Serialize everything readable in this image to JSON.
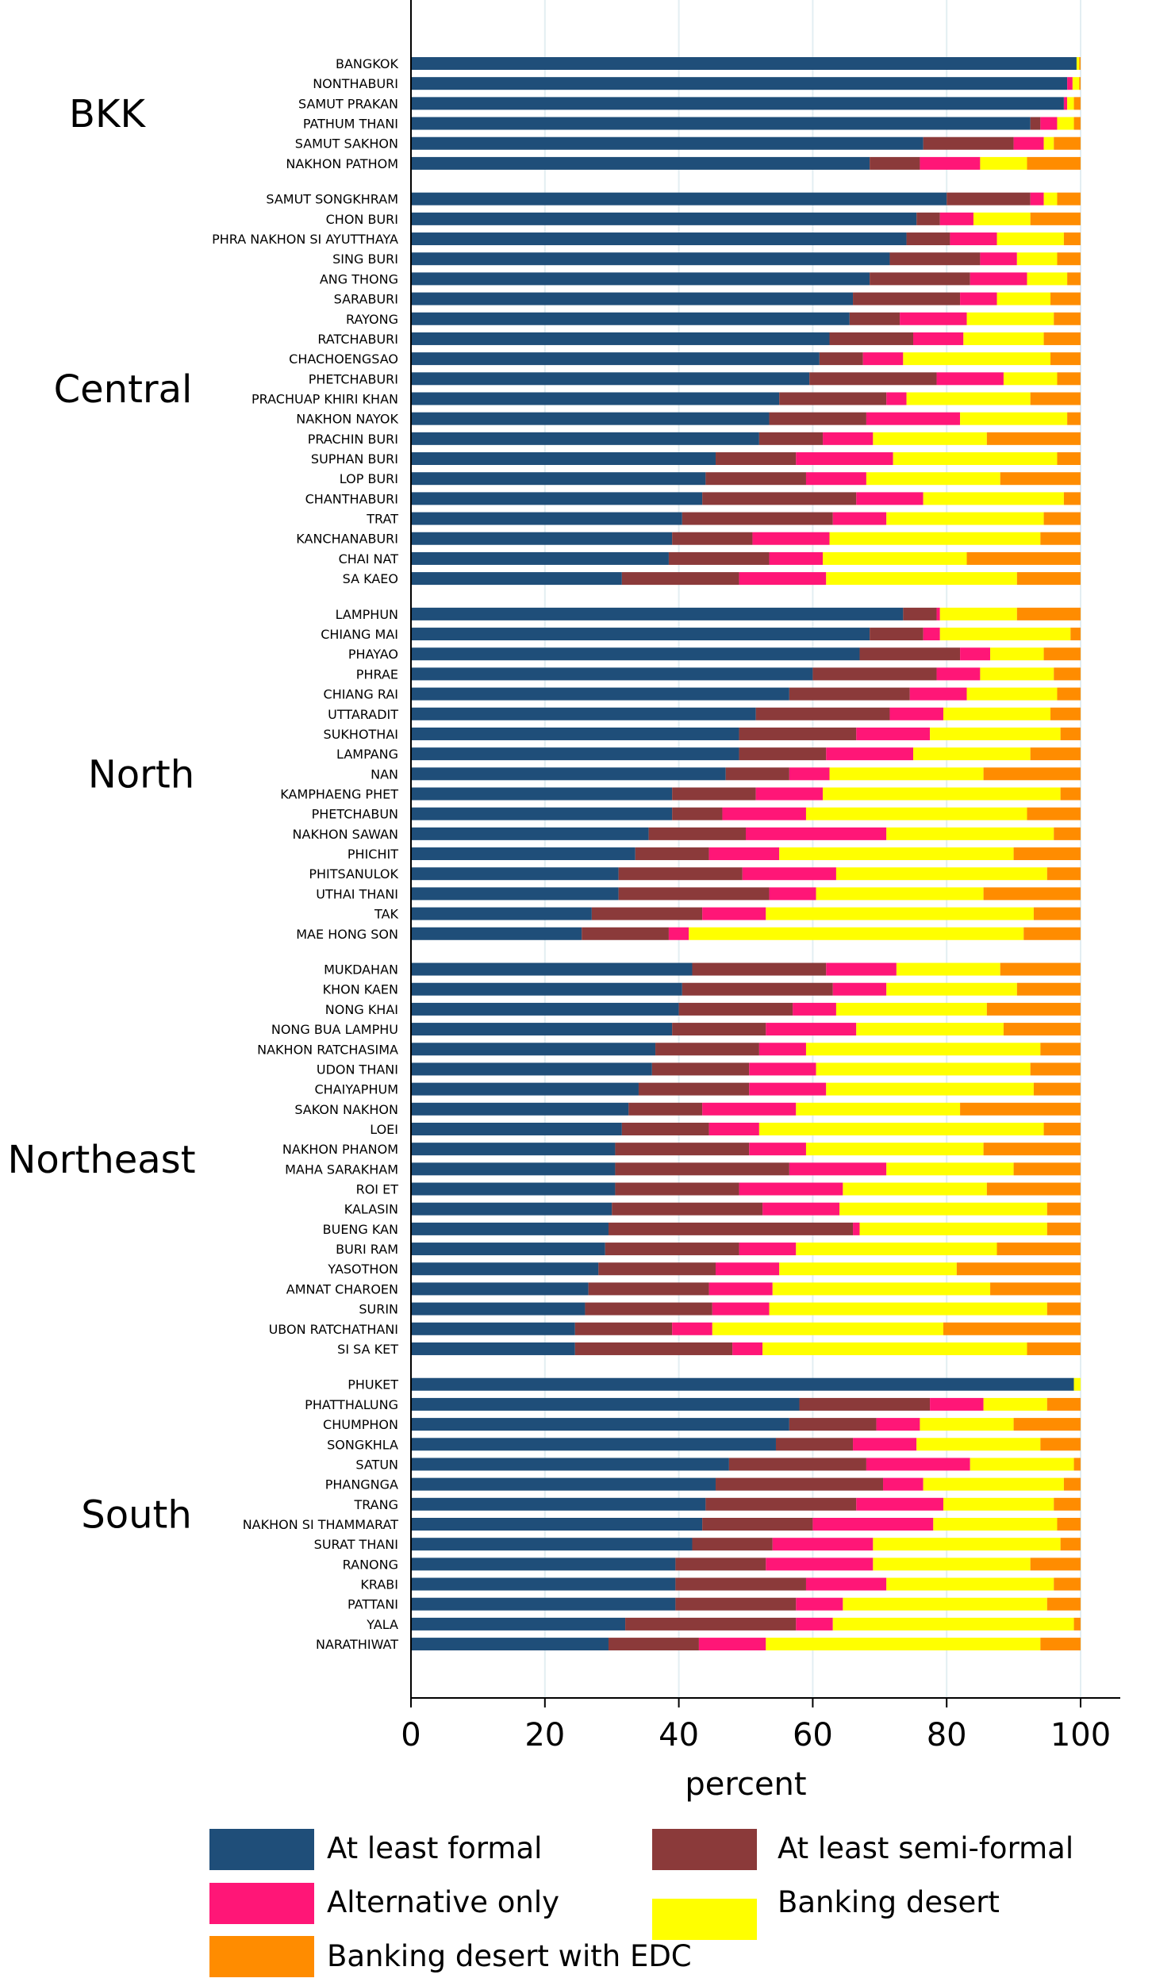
{
  "chart_data": {
    "type": "bar",
    "orientation": "horizontal",
    "stacked": true,
    "xlabel": "percent",
    "xlim": [
      0,
      100
    ],
    "xticks": [
      0,
      20,
      40,
      60,
      80,
      100
    ],
    "grid": "vertical",
    "legend_position": "bottom",
    "series": [
      {
        "name": "At least formal",
        "color": "#1f4e79"
      },
      {
        "name": "At least semi-formal",
        "color": "#8b3a3a"
      },
      {
        "name": "Alternative only",
        "color": "#ff1677"
      },
      {
        "name": "Banking desert",
        "color": "#ffff00"
      },
      {
        "name": "Banking desert with EDC",
        "color": "#ff8c00"
      }
    ],
    "groups": [
      {
        "region": "BKK",
        "rows": [
          {
            "name": "BANGKOK",
            "values": [
              99.4,
              0,
              0,
              0.4,
              0.2
            ]
          },
          {
            "name": "NONTHABURI",
            "values": [
              98.0,
              0,
              0.8,
              1.0,
              0.2
            ]
          },
          {
            "name": "SAMUT PRAKAN",
            "values": [
              97.5,
              0,
              0.5,
              1.0,
              1.0
            ]
          },
          {
            "name": "PATHUM THANI",
            "values": [
              92.5,
              1.5,
              2.5,
              2.5,
              1.0
            ]
          },
          {
            "name": "SAMUT SAKHON",
            "values": [
              76.5,
              13.5,
              4.5,
              1.5,
              4.0
            ]
          },
          {
            "name": "NAKHON PATHOM",
            "values": [
              68.5,
              7.5,
              9.0,
              7.0,
              8.0
            ]
          }
        ]
      },
      {
        "region": "Central",
        "rows": [
          {
            "name": "SAMUT SONGKHRAM",
            "values": [
              80.0,
              12.5,
              2.0,
              2.0,
              3.5
            ]
          },
          {
            "name": "CHON BURI",
            "values": [
              75.5,
              3.5,
              5.0,
              8.5,
              7.5
            ]
          },
          {
            "name": "PHRA NAKHON SI AYUTTHAYA",
            "values": [
              74.0,
              6.5,
              7.0,
              10.0,
              2.5
            ]
          },
          {
            "name": "SING BURI",
            "values": [
              71.5,
              13.5,
              5.5,
              6.0,
              3.5
            ]
          },
          {
            "name": "ANG THONG",
            "values": [
              68.5,
              15.0,
              8.5,
              6.0,
              2.0
            ]
          },
          {
            "name": "SARABURI",
            "values": [
              66.0,
              16.0,
              5.5,
              8.0,
              4.5
            ]
          },
          {
            "name": "RAYONG",
            "values": [
              65.5,
              7.5,
              10.0,
              13.0,
              4.0
            ]
          },
          {
            "name": "RATCHABURI",
            "values": [
              62.5,
              12.5,
              7.5,
              12.0,
              5.5
            ]
          },
          {
            "name": "CHACHOENGSAO",
            "values": [
              61.0,
              6.5,
              6.0,
              22.0,
              4.5
            ]
          },
          {
            "name": "PHETCHABURI",
            "values": [
              59.5,
              19.0,
              10.0,
              8.0,
              3.5
            ]
          },
          {
            "name": "PRACHUAP KHIRI KHAN",
            "values": [
              55.0,
              16.0,
              3.0,
              18.5,
              7.5
            ]
          },
          {
            "name": "NAKHON NAYOK",
            "values": [
              53.5,
              14.5,
              14.0,
              16.0,
              2.0
            ]
          },
          {
            "name": "PRACHIN BURI",
            "values": [
              52.0,
              9.5,
              7.5,
              17.0,
              14.0
            ]
          },
          {
            "name": "SUPHAN BURI",
            "values": [
              45.5,
              12.0,
              14.5,
              24.5,
              3.5
            ]
          },
          {
            "name": "LOP BURI",
            "values": [
              44.0,
              15.0,
              9.0,
              20.0,
              12.0
            ]
          },
          {
            "name": "CHANTHABURI",
            "values": [
              43.5,
              23.0,
              10.0,
              21.0,
              2.5
            ]
          },
          {
            "name": "TRAT",
            "values": [
              40.5,
              22.5,
              8.0,
              23.5,
              5.5
            ]
          },
          {
            "name": "KANCHANABURI",
            "values": [
              39.0,
              12.0,
              11.5,
              31.5,
              6.0
            ]
          },
          {
            "name": "CHAI NAT",
            "values": [
              38.5,
              15.0,
              8.0,
              21.5,
              17.0
            ]
          },
          {
            "name": "SA KAEO",
            "values": [
              31.5,
              17.5,
              13.0,
              28.5,
              9.5
            ]
          }
        ]
      },
      {
        "region": "North",
        "rows": [
          {
            "name": "LAMPHUN",
            "values": [
              73.5,
              5.0,
              0.5,
              11.5,
              9.5
            ]
          },
          {
            "name": "CHIANG MAI",
            "values": [
              68.5,
              8.0,
              2.5,
              19.5,
              1.5
            ]
          },
          {
            "name": "PHAYAO",
            "values": [
              67.0,
              15.0,
              4.5,
              8.0,
              5.5
            ]
          },
          {
            "name": "PHRAE",
            "values": [
              60.0,
              18.5,
              6.5,
              11.0,
              4.0
            ]
          },
          {
            "name": "CHIANG RAI",
            "values": [
              56.5,
              18.0,
              8.5,
              13.5,
              3.5
            ]
          },
          {
            "name": "UTTARADIT",
            "values": [
              51.5,
              20.0,
              8.0,
              16.0,
              4.5
            ]
          },
          {
            "name": "SUKHOTHAI",
            "values": [
              49.0,
              17.5,
              11.0,
              19.5,
              3.0
            ]
          },
          {
            "name": "LAMPANG",
            "values": [
              49.0,
              13.0,
              13.0,
              17.5,
              7.5
            ]
          },
          {
            "name": "NAN",
            "values": [
              47.0,
              9.5,
              6.0,
              23.0,
              14.5
            ]
          },
          {
            "name": "KAMPHAENG PHET",
            "values": [
              39.0,
              12.5,
              10.0,
              35.5,
              3.0
            ]
          },
          {
            "name": "PHETCHABUN",
            "values": [
              39.0,
              7.5,
              12.5,
              33.0,
              8.0
            ]
          },
          {
            "name": "NAKHON SAWAN",
            "values": [
              35.5,
              14.5,
              21.0,
              25.0,
              4.0
            ]
          },
          {
            "name": "PHICHIT",
            "values": [
              33.5,
              11.0,
              10.5,
              35.0,
              10.0
            ]
          },
          {
            "name": "PHITSANULOK",
            "values": [
              31.0,
              18.5,
              14.0,
              31.5,
              5.0
            ]
          },
          {
            "name": "UTHAI THANI",
            "values": [
              31.0,
              22.5,
              7.0,
              25.0,
              14.5
            ]
          },
          {
            "name": "TAK",
            "values": [
              27.0,
              16.5,
              9.5,
              40.0,
              7.0
            ]
          },
          {
            "name": "MAE HONG SON",
            "values": [
              25.5,
              13.0,
              3.0,
              50.0,
              8.5
            ]
          }
        ]
      },
      {
        "region": "Northeast",
        "rows": [
          {
            "name": "MUKDAHAN",
            "values": [
              42.0,
              20.0,
              10.5,
              15.5,
              12.0
            ]
          },
          {
            "name": "KHON KAEN",
            "values": [
              40.5,
              22.5,
              8.0,
              19.5,
              9.5
            ]
          },
          {
            "name": "NONG KHAI",
            "values": [
              40.0,
              17.0,
              6.5,
              22.5,
              14.0
            ]
          },
          {
            "name": "NONG BUA LAMPHU",
            "values": [
              39.0,
              14.0,
              13.5,
              22.0,
              11.5
            ]
          },
          {
            "name": "NAKHON RATCHASIMA",
            "values": [
              36.5,
              15.5,
              7.0,
              35.0,
              6.0
            ]
          },
          {
            "name": "UDON THANI",
            "values": [
              36.0,
              14.5,
              10.0,
              32.0,
              7.5
            ]
          },
          {
            "name": "CHAIYAPHUM",
            "values": [
              34.0,
              16.5,
              11.5,
              31.0,
              7.0
            ]
          },
          {
            "name": "SAKON NAKHON",
            "values": [
              32.5,
              11.0,
              14.0,
              24.5,
              18.0
            ]
          },
          {
            "name": "LOEI",
            "values": [
              31.5,
              13.0,
              7.5,
              42.5,
              5.5
            ]
          },
          {
            "name": "NAKHON PHANOM",
            "values": [
              30.5,
              20.0,
              8.5,
              26.5,
              14.5
            ]
          },
          {
            "name": "MAHA SARAKHAM",
            "values": [
              30.5,
              26.0,
              14.5,
              19.0,
              10.0
            ]
          },
          {
            "name": "ROI ET",
            "values": [
              30.5,
              18.5,
              15.5,
              21.5,
              14.0
            ]
          },
          {
            "name": "KALASIN",
            "values": [
              30.0,
              22.5,
              11.5,
              31.0,
              5.0
            ]
          },
          {
            "name": "BUENG KAN",
            "values": [
              29.5,
              36.5,
              1.0,
              28.0,
              5.0
            ]
          },
          {
            "name": "BURI RAM",
            "values": [
              29.0,
              20.0,
              8.5,
              30.0,
              12.5
            ]
          },
          {
            "name": "YASOTHON",
            "values": [
              28.0,
              17.5,
              9.5,
              26.5,
              18.5
            ]
          },
          {
            "name": "AMNAT CHAROEN",
            "values": [
              26.5,
              18.0,
              9.5,
              32.5,
              13.5
            ]
          },
          {
            "name": "SURIN",
            "values": [
              26.0,
              19.0,
              8.5,
              41.5,
              5.0
            ]
          },
          {
            "name": "UBON RATCHATHANI",
            "values": [
              24.5,
              14.5,
              6.0,
              34.5,
              20.5
            ]
          },
          {
            "name": "SI SA KET",
            "values": [
              24.5,
              23.5,
              4.5,
              39.5,
              8.0
            ]
          }
        ]
      },
      {
        "region": "South",
        "rows": [
          {
            "name": "PHUKET",
            "values": [
              99.0,
              0,
              0,
              1.0,
              0
            ]
          },
          {
            "name": "PHATTHALUNG",
            "values": [
              58.0,
              19.5,
              8.0,
              9.5,
              5.0
            ]
          },
          {
            "name": "CHUMPHON",
            "values": [
              56.5,
              13.0,
              6.5,
              14.0,
              10.0
            ]
          },
          {
            "name": "SONGKHLA",
            "values": [
              54.5,
              11.5,
              9.5,
              18.5,
              6.0
            ]
          },
          {
            "name": "SATUN",
            "values": [
              47.5,
              20.5,
              15.5,
              15.5,
              1.0
            ]
          },
          {
            "name": "PHANGNGA",
            "values": [
              45.5,
              25.0,
              6.0,
              21.0,
              2.5
            ]
          },
          {
            "name": "TRANG",
            "values": [
              44.0,
              22.5,
              13.0,
              16.5,
              4.0
            ]
          },
          {
            "name": "NAKHON SI THAMMARAT",
            "values": [
              43.5,
              16.5,
              18.0,
              18.5,
              3.5
            ]
          },
          {
            "name": "SURAT THANI",
            "values": [
              42.0,
              12.0,
              15.0,
              28.0,
              3.0
            ]
          },
          {
            "name": "RANONG",
            "values": [
              39.5,
              13.5,
              16.0,
              23.5,
              7.5
            ]
          },
          {
            "name": "KRABI",
            "values": [
              39.5,
              19.5,
              12.0,
              25.0,
              4.0
            ]
          },
          {
            "name": "PATTANI",
            "values": [
              39.5,
              18.0,
              7.0,
              30.5,
              5.0
            ]
          },
          {
            "name": "YALA",
            "values": [
              32.0,
              25.5,
              5.5,
              36.0,
              1.0
            ]
          },
          {
            "name": "NARATHIWAT",
            "values": [
              29.5,
              13.5,
              10.0,
              41.0,
              6.0
            ]
          }
        ]
      }
    ]
  }
}
